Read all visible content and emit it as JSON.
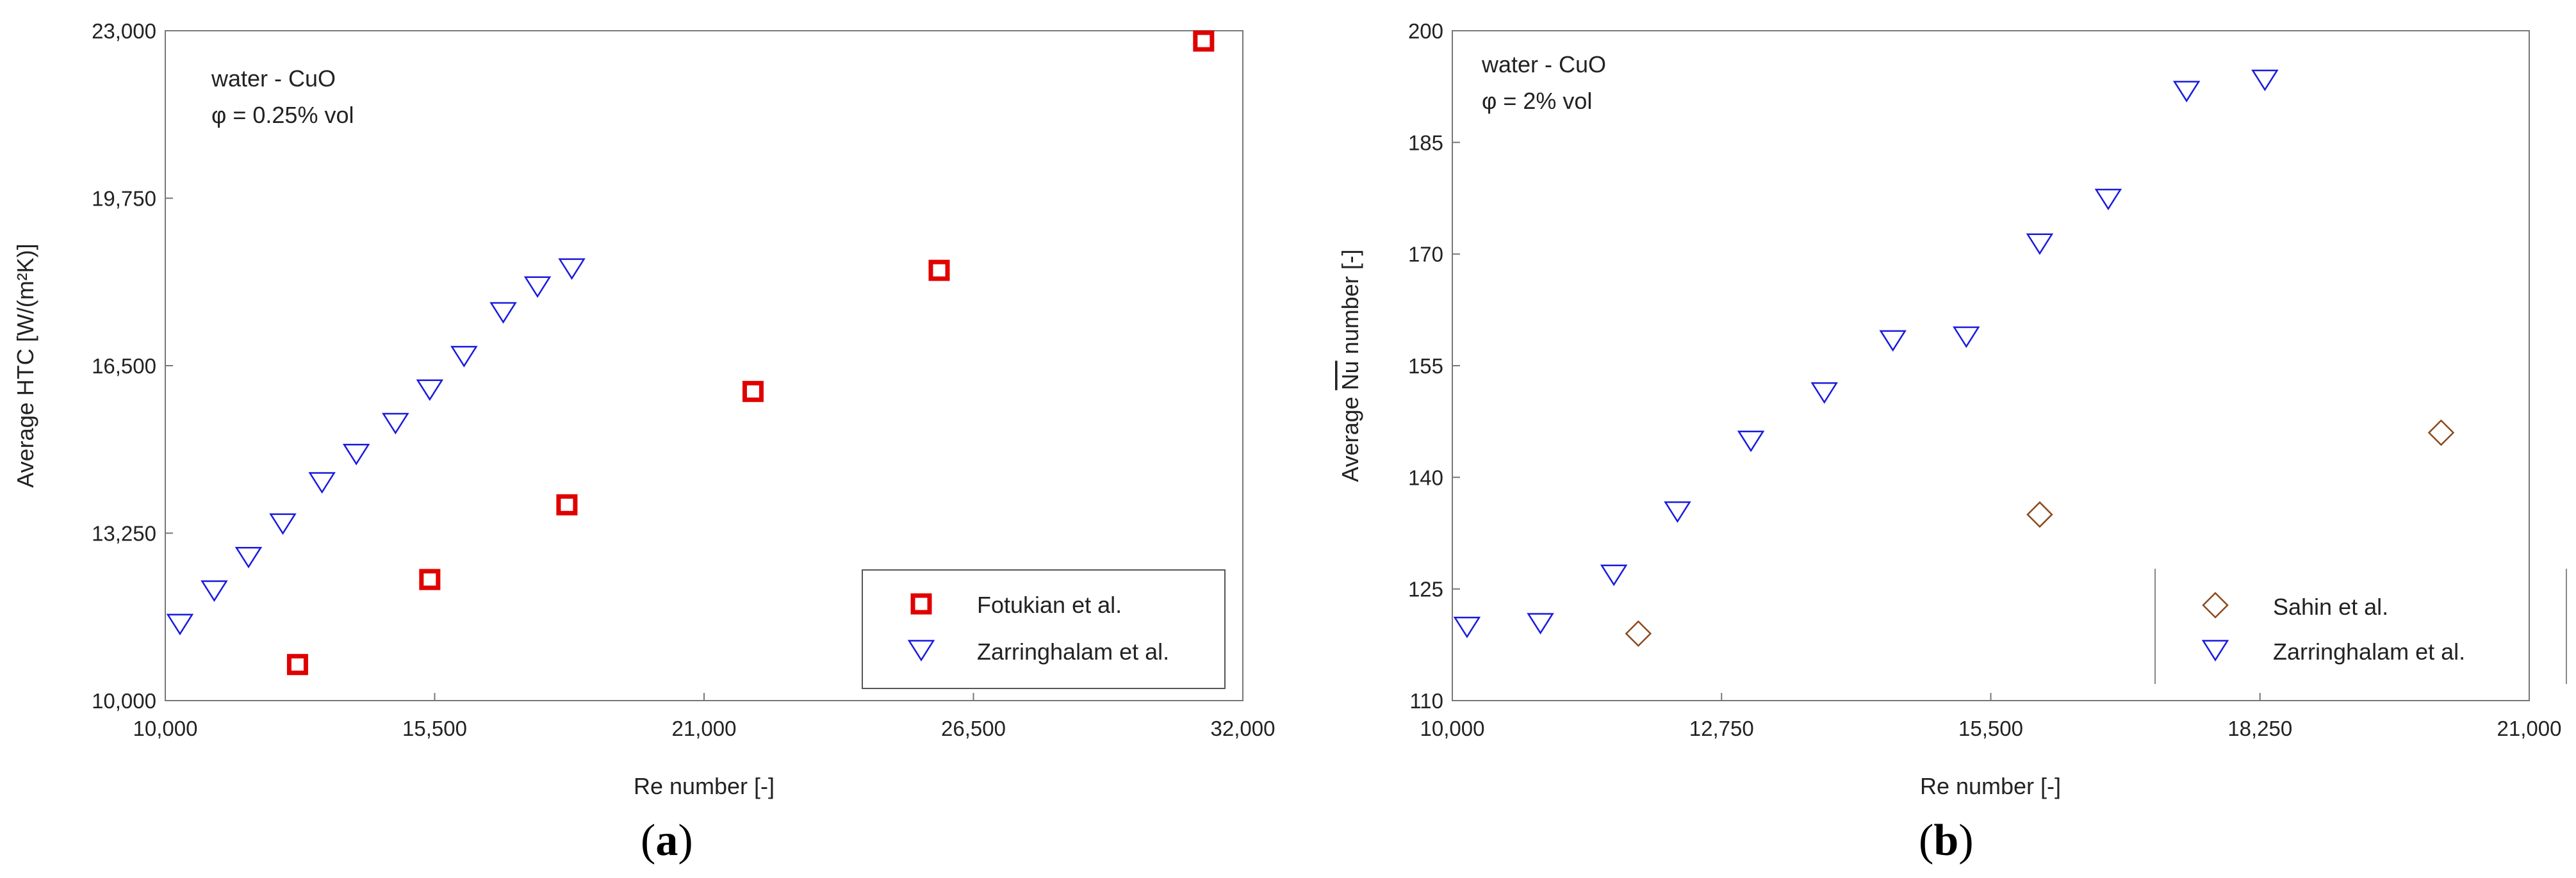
{
  "chart_data": [
    {
      "type": "scatter",
      "panel": "a",
      "xlabel": "Re number [-]",
      "ylabel": "Average HTC [W/(m²K)]",
      "xlim": [
        10000,
        32000
      ],
      "ylim": [
        10000,
        23000
      ],
      "xticks": [
        10000,
        15500,
        21000,
        26500,
        32000
      ],
      "yticks": [
        10000,
        13250,
        16500,
        19750,
        23000
      ],
      "xtick_labels": [
        "10,000",
        "15,500",
        "21,000",
        "26,500",
        "32,000"
      ],
      "ytick_labels": [
        "10,000",
        "13,250",
        "16,500",
        "19,750",
        "23,000"
      ],
      "annotation": [
        "water - CuO",
        "φ = 0.25% vol"
      ],
      "legend_position": "bottom-right",
      "series": [
        {
          "name": "Fotukian et al.",
          "marker": "square",
          "color": "#e00000",
          "points": [
            [
              12700,
              10700
            ],
            [
              15400,
              12350
            ],
            [
              18200,
              13800
            ],
            [
              22000,
              16000
            ],
            [
              25800,
              18350
            ],
            [
              31200,
              22800
            ]
          ]
        },
        {
          "name": "Zarringhalam et al.",
          "marker": "triangle-down",
          "color": "#1a1adf",
          "points": [
            [
              10300,
              11500
            ],
            [
              11000,
              12150
            ],
            [
              11700,
              12800
            ],
            [
              12400,
              13450
            ],
            [
              13200,
              14250
            ],
            [
              13900,
              14800
            ],
            [
              14700,
              15400
            ],
            [
              15400,
              16050
            ],
            [
              16100,
              16700
            ],
            [
              16900,
              17550
            ],
            [
              17600,
              18050
            ],
            [
              18300,
              18400
            ]
          ]
        }
      ]
    },
    {
      "type": "scatter",
      "panel": "b",
      "xlabel": "Re number [-]",
      "ylabel": "Average Nu number [-]",
      "xlim": [
        10000,
        21000
      ],
      "ylim": [
        110,
        200
      ],
      "xticks": [
        10000,
        12750,
        15500,
        18250,
        21000
      ],
      "yticks": [
        110,
        125,
        140,
        155,
        170,
        185,
        200
      ],
      "xtick_labels": [
        "10,000",
        "12,750",
        "15,500",
        "18,250",
        "21,000"
      ],
      "ytick_labels": [
        "110",
        "125",
        "140",
        "155",
        "170",
        "185",
        "200"
      ],
      "annotation": [
        "water - CuO",
        "φ = 2% vol"
      ],
      "legend_position": "bottom-right",
      "series": [
        {
          "name": "Sahin et al.",
          "marker": "diamond",
          "color": "#8b4a1c",
          "points": [
            [
              11900,
              119
            ],
            [
              16000,
              135
            ],
            [
              20100,
              146
            ]
          ]
        },
        {
          "name": "Zarringhalam et al.",
          "marker": "triangle-down",
          "color": "#1a1adf",
          "points": [
            [
              10150,
              120
            ],
            [
              10900,
              120.5
            ],
            [
              11650,
              127
            ],
            [
              12300,
              135.5
            ],
            [
              13050,
              145
            ],
            [
              13800,
              151.5
            ],
            [
              14500,
              158.5
            ],
            [
              15250,
              159
            ],
            [
              16000,
              171.5
            ],
            [
              16700,
              177.5
            ],
            [
              17500,
              192
            ],
            [
              18300,
              193.5
            ]
          ]
        }
      ]
    }
  ],
  "panel_labels": {
    "a": {
      "paren_open": "(",
      "letter": "a",
      "paren_close": ")"
    },
    "b": {
      "paren_open": "(",
      "letter": "b",
      "paren_close": ")"
    }
  },
  "ylabel_b_parts": {
    "prefix": "Average ",
    "nu": "Nu",
    "suffix": " number [-]"
  }
}
